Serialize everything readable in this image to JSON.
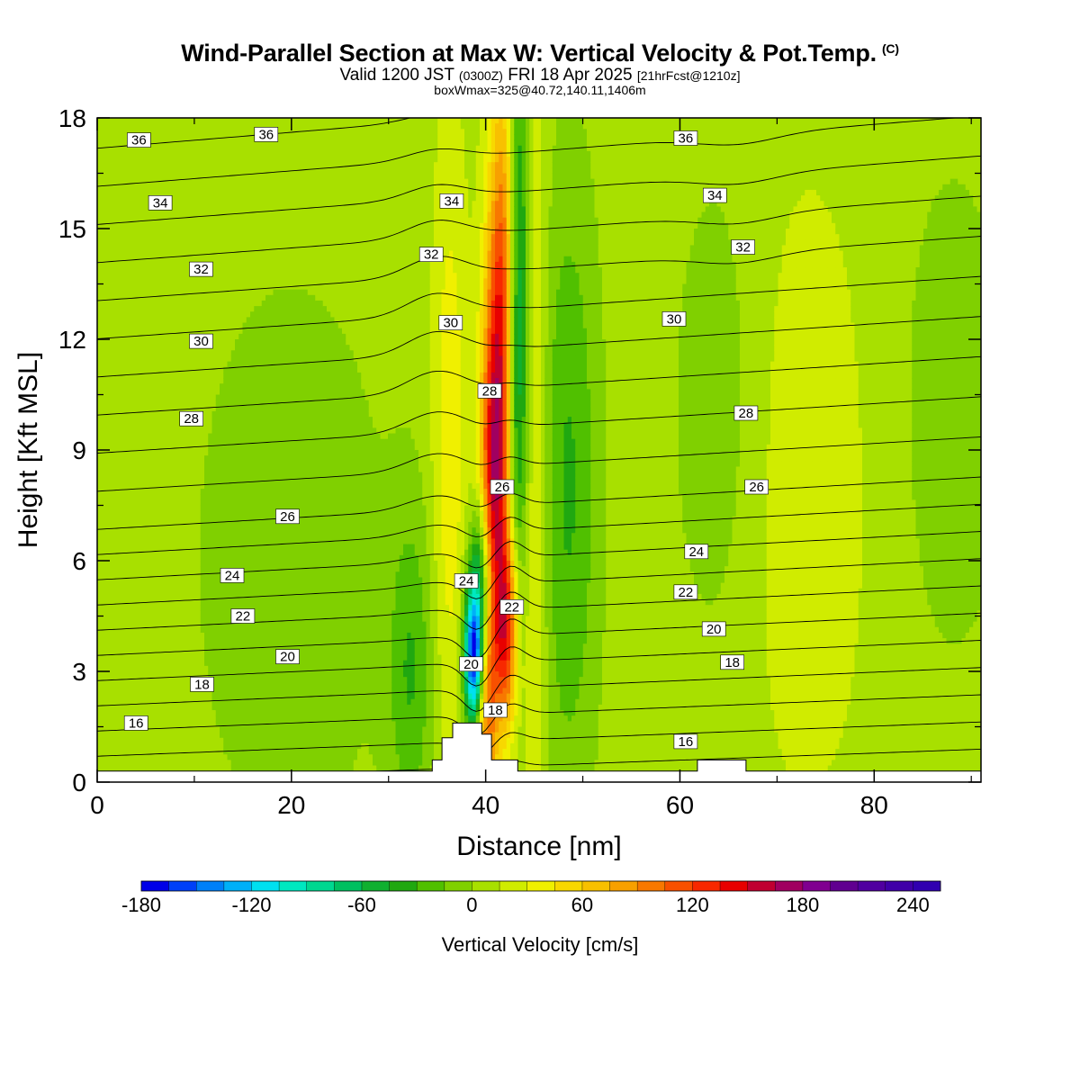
{
  "title": {
    "main": "Wind-Parallel Section at Max W: Vertical Velocity & Pot.Temp.",
    "tag": "(C)",
    "valid_prefix": "Valid 1200 JST",
    "valid_utc": "(0300Z)",
    "valid_date": "FRI 18 Apr 2025",
    "forecast": "[21hrFcst@1210z]",
    "box": "boxWmax=325@40.72,140.11,1406m"
  },
  "chart_data": {
    "type": "heatmap",
    "xlabel": "Distance [nm]",
    "ylabel": "Height [Kft MSL]",
    "xlim": [
      0,
      91
    ],
    "ylim": [
      0,
      18
    ],
    "x_ticks": [
      0,
      20,
      40,
      60,
      80
    ],
    "y_ticks": [
      0,
      3,
      6,
      9,
      12,
      15,
      18
    ],
    "colorbar": {
      "label": "Vertical Velocity [cm/s]",
      "levels": [
        -180,
        -165,
        -150,
        -135,
        -120,
        -105,
        -90,
        -75,
        -60,
        -45,
        -30,
        -15,
        0,
        15,
        30,
        45,
        60,
        75,
        90,
        105,
        120,
        135,
        150,
        165,
        180,
        195,
        210,
        225,
        240,
        255
      ],
      "tick_labels": [
        -180,
        -120,
        -60,
        0,
        60,
        120,
        180,
        240
      ],
      "colors": [
        "#0000e8",
        "#0040f8",
        "#0080f8",
        "#00b0f8",
        "#00e0f0",
        "#00e8c0",
        "#00d890",
        "#00c060",
        "#10b030",
        "#20a810",
        "#50c000",
        "#80d000",
        "#a8e000",
        "#d0ec00",
        "#f0f000",
        "#f8d800",
        "#f8c000",
        "#f8a000",
        "#f87800",
        "#f85000",
        "#f82800",
        "#e80000",
        "#c00030",
        "#a00060",
        "#800090",
        "#600090",
        "#5000a0",
        "#4000a8",
        "#3000b0"
      ]
    },
    "theta_contours": {
      "units": "C",
      "levels": [
        16,
        17,
        18,
        19,
        20,
        21,
        22,
        23,
        24,
        25,
        26,
        27,
        28,
        29,
        30,
        31,
        32,
        33,
        34,
        35,
        36
      ],
      "labels": [
        {
          "text": "36",
          "x": 4.3,
          "y": 17.4
        },
        {
          "text": "36",
          "x": 17.4,
          "y": 17.55
        },
        {
          "text": "36",
          "x": 60.6,
          "y": 17.45
        },
        {
          "text": "34",
          "x": 6.5,
          "y": 15.7
        },
        {
          "text": "34",
          "x": 36.5,
          "y": 15.75
        },
        {
          "text": "34",
          "x": 63.6,
          "y": 15.9
        },
        {
          "text": "32",
          "x": 10.7,
          "y": 13.9
        },
        {
          "text": "32",
          "x": 34.4,
          "y": 14.3
        },
        {
          "text": "32",
          "x": 66.5,
          "y": 14.5
        },
        {
          "text": "30",
          "x": 10.7,
          "y": 11.95
        },
        {
          "text": "30",
          "x": 36.4,
          "y": 12.45
        },
        {
          "text": "30",
          "x": 59.4,
          "y": 12.55
        },
        {
          "text": "28",
          "x": 9.7,
          "y": 9.85
        },
        {
          "text": "28",
          "x": 40.4,
          "y": 10.6
        },
        {
          "text": "28",
          "x": 66.8,
          "y": 10.0
        },
        {
          "text": "26",
          "x": 19.6,
          "y": 7.2
        },
        {
          "text": "26",
          "x": 41.7,
          "y": 8.0
        },
        {
          "text": "26",
          "x": 67.9,
          "y": 8.0
        },
        {
          "text": "24",
          "x": 13.9,
          "y": 5.6
        },
        {
          "text": "24",
          "x": 38.0,
          "y": 5.45
        },
        {
          "text": "24",
          "x": 61.7,
          "y": 6.25
        },
        {
          "text": "22",
          "x": 15.0,
          "y": 4.5
        },
        {
          "text": "22",
          "x": 42.7,
          "y": 4.75
        },
        {
          "text": "22",
          "x": 60.6,
          "y": 5.15
        },
        {
          "text": "20",
          "x": 19.6,
          "y": 3.4
        },
        {
          "text": "20",
          "x": 38.5,
          "y": 3.2
        },
        {
          "text": "20",
          "x": 63.5,
          "y": 4.15
        },
        {
          "text": "18",
          "x": 10.8,
          "y": 2.65
        },
        {
          "text": "18",
          "x": 41.0,
          "y": 1.95
        },
        {
          "text": "18",
          "x": 65.4,
          "y": 3.25
        },
        {
          "text": "16",
          "x": 4.0,
          "y": 1.6
        },
        {
          "text": "16",
          "x": 60.6,
          "y": 1.1
        }
      ]
    },
    "terrain": [
      [
        0,
        0.3
      ],
      [
        34.5,
        0.3
      ],
      [
        34.5,
        0.6
      ],
      [
        35.5,
        0.6
      ],
      [
        35.5,
        1.2
      ],
      [
        36.6,
        1.2
      ],
      [
        36.6,
        1.6
      ],
      [
        39.6,
        1.6
      ],
      [
        39.6,
        1.3
      ],
      [
        40.6,
        1.3
      ],
      [
        40.6,
        0.6
      ],
      [
        43.3,
        0.6
      ],
      [
        43.3,
        0.3
      ],
      [
        61.8,
        0.3
      ],
      [
        61.8,
        0.6
      ],
      [
        66.8,
        0.6
      ],
      [
        66.8,
        0.3
      ],
      [
        91,
        0.3
      ]
    ]
  }
}
